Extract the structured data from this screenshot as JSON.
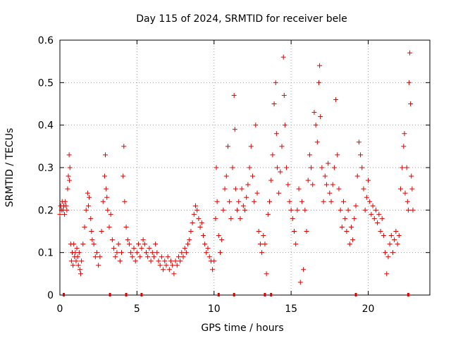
{
  "chart_data": {
    "type": "scatter",
    "title": "Day 115 of 2024, SRMTID for receiver bele",
    "xlabel": "GPS time / hours",
    "ylabel": "SRMTID / TECUs",
    "xlim": [
      0,
      24
    ],
    "ylim": [
      0,
      0.6
    ],
    "xticks": [
      0,
      5,
      10,
      15,
      20
    ],
    "xtick_labels": [
      "0",
      "5",
      "10",
      "15",
      "20"
    ],
    "yticks": [
      0,
      0.1,
      0.2,
      0.3,
      0.4,
      0.5,
      0.6
    ],
    "ytick_labels": [
      "0",
      "0.1",
      "0.2",
      "0.3",
      "0.4",
      "0.5",
      "0.6"
    ],
    "grid": true,
    "marker": "+",
    "series_color": "#e00000",
    "series": [
      {
        "name": "SRMTID",
        "points": [
          [
            0.0,
            0.19
          ],
          [
            0.05,
            0.21
          ],
          [
            0.1,
            0.2
          ],
          [
            0.15,
            0.22
          ],
          [
            0.2,
            0.2
          ],
          [
            0.25,
            0.21
          ],
          [
            0.3,
            0.19
          ],
          [
            0.35,
            0.22
          ],
          [
            0.4,
            0.21
          ],
          [
            0.45,
            0.2
          ],
          [
            0.5,
            0.25
          ],
          [
            0.55,
            0.28
          ],
          [
            0.6,
            0.33
          ],
          [
            0.62,
            0.27
          ],
          [
            0.65,
            0.3
          ],
          [
            0.7,
            0.12
          ],
          [
            0.75,
            0.08
          ],
          [
            0.8,
            0.1
          ],
          [
            0.85,
            0.07
          ],
          [
            0.9,
            0.12
          ],
          [
            0.95,
            0.09
          ],
          [
            1.0,
            0.1
          ],
          [
            1.05,
            0.08
          ],
          [
            1.1,
            0.11
          ],
          [
            1.15,
            0.09
          ],
          [
            1.2,
            0.07
          ],
          [
            1.25,
            0.1
          ],
          [
            1.3,
            0.06
          ],
          [
            1.35,
            0.05
          ],
          [
            1.4,
            0.08
          ],
          [
            1.5,
            0.12
          ],
          [
            1.6,
            0.16
          ],
          [
            1.7,
            0.2
          ],
          [
            1.8,
            0.24
          ],
          [
            1.85,
            0.21
          ],
          [
            1.9,
            0.23
          ],
          [
            2.0,
            0.18
          ],
          [
            2.05,
            0.15
          ],
          [
            2.1,
            0.13
          ],
          [
            2.2,
            0.12
          ],
          [
            2.3,
            0.09
          ],
          [
            2.4,
            0.1
          ],
          [
            2.5,
            0.07
          ],
          [
            2.6,
            0.09
          ],
          [
            2.7,
            0.15
          ],
          [
            2.8,
            0.22
          ],
          [
            2.9,
            0.28
          ],
          [
            2.95,
            0.33
          ],
          [
            3.0,
            0.25
          ],
          [
            3.05,
            0.23
          ],
          [
            3.1,
            0.2
          ],
          [
            3.2,
            0.16
          ],
          [
            3.3,
            0.19
          ],
          [
            3.4,
            0.13
          ],
          [
            3.5,
            0.11
          ],
          [
            3.6,
            0.09
          ],
          [
            3.7,
            0.1
          ],
          [
            3.8,
            0.12
          ],
          [
            3.9,
            0.08
          ],
          [
            4.0,
            0.1
          ],
          [
            4.1,
            0.28
          ],
          [
            4.15,
            0.35
          ],
          [
            4.2,
            0.22
          ],
          [
            4.3,
            0.16
          ],
          [
            4.4,
            0.13
          ],
          [
            4.5,
            0.12
          ],
          [
            4.6,
            0.1
          ],
          [
            4.7,
            0.09
          ],
          [
            4.8,
            0.11
          ],
          [
            4.9,
            0.08
          ],
          [
            5.0,
            0.1
          ],
          [
            5.1,
            0.12
          ],
          [
            5.2,
            0.09
          ],
          [
            5.3,
            0.11
          ],
          [
            5.4,
            0.13
          ],
          [
            5.5,
            0.12
          ],
          [
            5.6,
            0.1
          ],
          [
            5.7,
            0.09
          ],
          [
            5.8,
            0.11
          ],
          [
            5.9,
            0.08
          ],
          [
            6.0,
            0.1
          ],
          [
            6.1,
            0.09
          ],
          [
            6.2,
            0.12
          ],
          [
            6.3,
            0.1
          ],
          [
            6.4,
            0.08
          ],
          [
            6.5,
            0.07
          ],
          [
            6.6,
            0.09
          ],
          [
            6.7,
            0.06
          ],
          [
            6.8,
            0.08
          ],
          [
            6.9,
            0.07
          ],
          [
            7.0,
            0.09
          ],
          [
            7.1,
            0.06
          ],
          [
            7.2,
            0.08
          ],
          [
            7.3,
            0.07
          ],
          [
            7.4,
            0.05
          ],
          [
            7.5,
            0.08
          ],
          [
            7.6,
            0.07
          ],
          [
            7.7,
            0.09
          ],
          [
            7.8,
            0.08
          ],
          [
            7.9,
            0.1
          ],
          [
            8.0,
            0.09
          ],
          [
            8.1,
            0.11
          ],
          [
            8.2,
            0.1
          ],
          [
            8.3,
            0.12
          ],
          [
            8.4,
            0.13
          ],
          [
            8.5,
            0.15
          ],
          [
            8.6,
            0.17
          ],
          [
            8.7,
            0.19
          ],
          [
            8.8,
            0.21
          ],
          [
            8.9,
            0.2
          ],
          [
            9.0,
            0.18
          ],
          [
            9.1,
            0.16
          ],
          [
            9.2,
            0.17
          ],
          [
            9.3,
            0.14
          ],
          [
            9.4,
            0.12
          ],
          [
            9.5,
            0.1
          ],
          [
            9.6,
            0.11
          ],
          [
            9.7,
            0.09
          ],
          [
            9.8,
            0.08
          ],
          [
            9.9,
            0.06
          ],
          [
            10.0,
            0.08
          ],
          [
            10.1,
            0.18
          ],
          [
            10.15,
            0.3
          ],
          [
            10.2,
            0.22
          ],
          [
            10.3,
            0.14
          ],
          [
            10.4,
            0.1
          ],
          [
            10.5,
            0.13
          ],
          [
            10.6,
            0.2
          ],
          [
            10.7,
            0.25
          ],
          [
            10.8,
            0.28
          ],
          [
            10.9,
            0.35
          ],
          [
            11.0,
            0.22
          ],
          [
            11.1,
            0.18
          ],
          [
            11.2,
            0.3
          ],
          [
            11.3,
            0.47
          ],
          [
            11.35,
            0.39
          ],
          [
            11.4,
            0.25
          ],
          [
            11.5,
            0.2
          ],
          [
            11.6,
            0.22
          ],
          [
            11.7,
            0.18
          ],
          [
            11.8,
            0.25
          ],
          [
            11.9,
            0.21
          ],
          [
            12.0,
            0.2
          ],
          [
            12.1,
            0.23
          ],
          [
            12.2,
            0.26
          ],
          [
            12.3,
            0.3
          ],
          [
            12.4,
            0.35
          ],
          [
            12.5,
            0.28
          ],
          [
            12.6,
            0.22
          ],
          [
            12.7,
            0.4
          ],
          [
            12.8,
            0.24
          ],
          [
            12.9,
            0.15
          ],
          [
            13.0,
            0.12
          ],
          [
            13.1,
            0.1
          ],
          [
            13.2,
            0.14
          ],
          [
            13.3,
            0.12
          ],
          [
            13.4,
            0.05
          ],
          [
            13.5,
            0.19
          ],
          [
            13.6,
            0.22
          ],
          [
            13.7,
            0.27
          ],
          [
            13.8,
            0.33
          ],
          [
            13.9,
            0.45
          ],
          [
            14.0,
            0.5
          ],
          [
            14.05,
            0.38
          ],
          [
            14.1,
            0.3
          ],
          [
            14.2,
            0.24
          ],
          [
            14.3,
            0.29
          ],
          [
            14.4,
            0.35
          ],
          [
            14.5,
            0.56
          ],
          [
            14.55,
            0.47
          ],
          [
            14.6,
            0.4
          ],
          [
            14.7,
            0.3
          ],
          [
            14.8,
            0.26
          ],
          [
            14.9,
            0.22
          ],
          [
            15.0,
            0.2
          ],
          [
            15.1,
            0.18
          ],
          [
            15.2,
            0.15
          ],
          [
            15.3,
            0.12
          ],
          [
            15.4,
            0.2
          ],
          [
            15.5,
            0.25
          ],
          [
            15.6,
            0.03
          ],
          [
            15.7,
            0.22
          ],
          [
            15.8,
            0.06
          ],
          [
            15.9,
            0.2
          ],
          [
            16.0,
            0.15
          ],
          [
            16.1,
            0.27
          ],
          [
            16.2,
            0.33
          ],
          [
            16.3,
            0.3
          ],
          [
            16.4,
            0.26
          ],
          [
            16.5,
            0.43
          ],
          [
            16.6,
            0.4
          ],
          [
            16.7,
            0.36
          ],
          [
            16.8,
            0.5
          ],
          [
            16.85,
            0.54
          ],
          [
            16.9,
            0.42
          ],
          [
            17.0,
            0.3
          ],
          [
            17.1,
            0.22
          ],
          [
            17.2,
            0.28
          ],
          [
            17.3,
            0.26
          ],
          [
            17.4,
            0.31
          ],
          [
            17.5,
            0.24
          ],
          [
            17.6,
            0.22
          ],
          [
            17.7,
            0.26
          ],
          [
            17.8,
            0.3
          ],
          [
            17.9,
            0.46
          ],
          [
            18.0,
            0.33
          ],
          [
            18.1,
            0.25
          ],
          [
            18.2,
            0.2
          ],
          [
            18.3,
            0.16
          ],
          [
            18.4,
            0.22
          ],
          [
            18.5,
            0.18
          ],
          [
            18.6,
            0.15
          ],
          [
            18.7,
            0.2
          ],
          [
            18.8,
            0.12
          ],
          [
            18.9,
            0.16
          ],
          [
            19.0,
            0.13
          ],
          [
            19.1,
            0.18
          ],
          [
            19.2,
            0.21
          ],
          [
            19.3,
            0.28
          ],
          [
            19.4,
            0.36
          ],
          [
            19.5,
            0.33
          ],
          [
            19.6,
            0.3
          ],
          [
            19.7,
            0.25
          ],
          [
            19.8,
            0.2
          ],
          [
            19.9,
            0.23
          ],
          [
            20.0,
            0.27
          ],
          [
            20.1,
            0.22
          ],
          [
            20.2,
            0.19
          ],
          [
            20.3,
            0.21
          ],
          [
            20.4,
            0.18
          ],
          [
            20.5,
            0.2
          ],
          [
            20.6,
            0.17
          ],
          [
            20.7,
            0.19
          ],
          [
            20.8,
            0.15
          ],
          [
            20.9,
            0.18
          ],
          [
            21.0,
            0.14
          ],
          [
            21.1,
            0.1
          ],
          [
            21.2,
            0.05
          ],
          [
            21.3,
            0.09
          ],
          [
            21.4,
            0.12
          ],
          [
            21.5,
            0.14
          ],
          [
            21.6,
            0.1
          ],
          [
            21.7,
            0.13
          ],
          [
            21.8,
            0.15
          ],
          [
            21.9,
            0.12
          ],
          [
            22.0,
            0.14
          ],
          [
            22.1,
            0.25
          ],
          [
            22.2,
            0.3
          ],
          [
            22.3,
            0.35
          ],
          [
            22.35,
            0.38
          ],
          [
            22.4,
            0.24
          ],
          [
            22.5,
            0.3
          ],
          [
            22.55,
            0.22
          ],
          [
            22.6,
            0.2
          ],
          [
            22.65,
            0.5
          ],
          [
            22.7,
            0.57
          ],
          [
            22.75,
            0.45
          ],
          [
            22.8,
            0.28
          ],
          [
            22.85,
            0.25
          ],
          [
            22.9,
            0.2
          ]
        ]
      }
    ],
    "axis_markers_x": [
      0.25,
      3.25,
      4.3,
      5.3,
      10.3,
      11.3,
      13.3,
      13.7,
      19.2,
      22.6
    ]
  }
}
